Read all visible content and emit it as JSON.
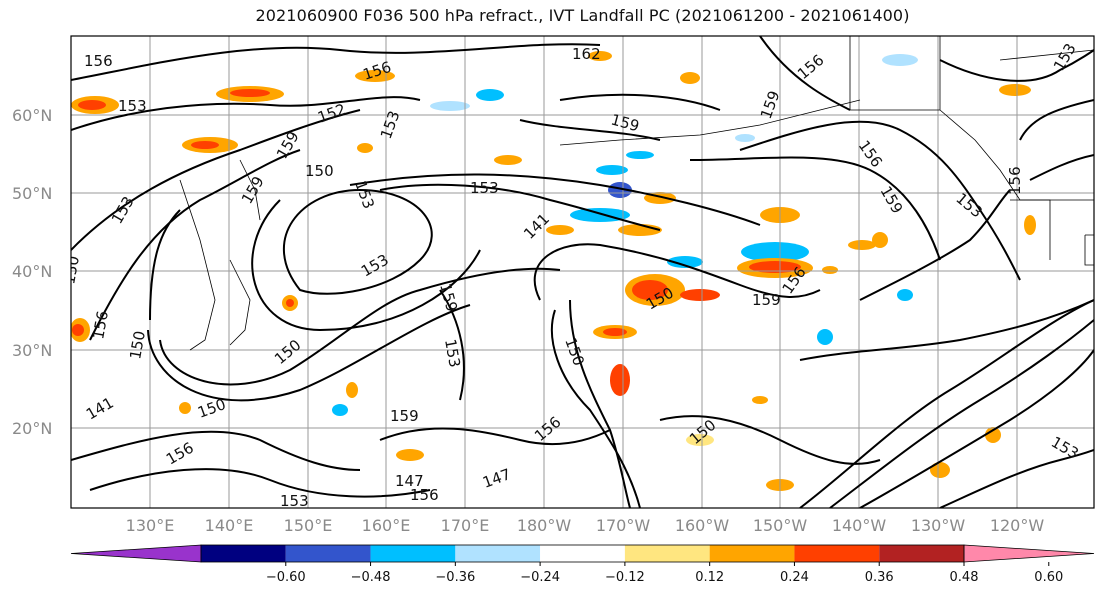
{
  "title": "2021060900 F036 500 hPa refract., IVT Landfall PC (2021061200 - 2021061400)",
  "latitudes": [
    "60°N",
    "50°N",
    "40°N",
    "30°N",
    "20°N"
  ],
  "longitudes": [
    "130°E",
    "140°E",
    "150°E",
    "160°E",
    "170°E",
    "180°W",
    "170°W",
    "160°W",
    "150°W",
    "140°W",
    "130°W",
    "120°W"
  ],
  "colorbar": {
    "ticks": [
      "−0.60",
      "−0.48",
      "−0.36",
      "−0.24",
      "−0.12",
      "0.12",
      "0.24",
      "0.36",
      "0.48",
      "0.60"
    ],
    "colors": [
      "#9933cc",
      "#000080",
      "#3355cc",
      "#00bfff",
      "#b0e2ff",
      "#ffffff",
      "#ffe680",
      "#ffa500",
      "#ff4000",
      "#b22222",
      "#ff88aa"
    ]
  },
  "contour_labels": [
    "156",
    "153",
    "162",
    "156",
    "153",
    "152",
    "153",
    "159",
    "159",
    "156",
    "159",
    "150",
    "153",
    "159",
    "156",
    "153",
    "153",
    "141",
    "153",
    "159",
    "156",
    "153",
    "150",
    "159",
    "150",
    "159",
    "156",
    "156",
    "150",
    "150",
    "153",
    "150",
    "141",
    "150",
    "159",
    "156",
    "153",
    "156",
    "150",
    "147",
    "147",
    "156",
    "153"
  ]
}
